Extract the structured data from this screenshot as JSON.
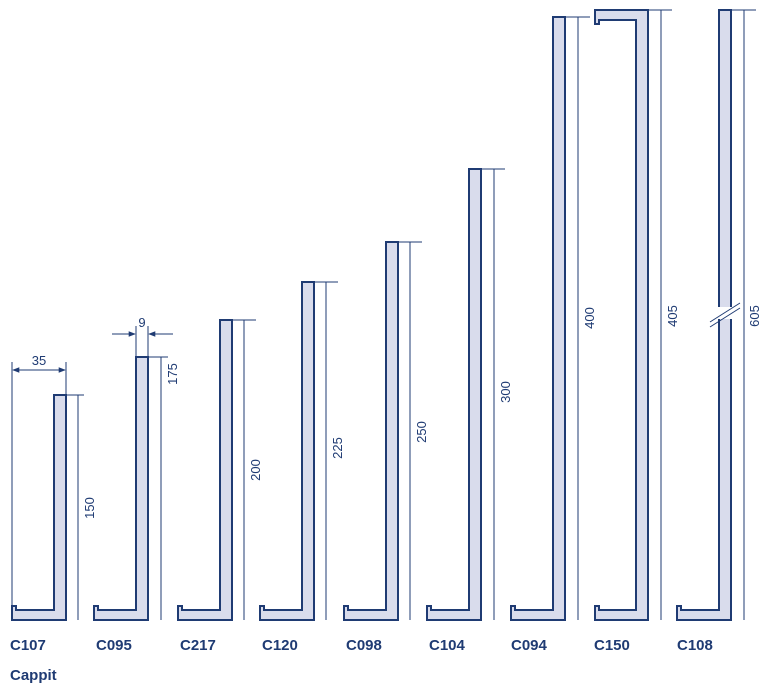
{
  "colors": {
    "stroke": "#1f3b73",
    "fill": "#d9dcec",
    "text": "#1f3b73"
  },
  "profiles": [
    {
      "code": "C107",
      "height_label": "150",
      "width_label": "35"
    },
    {
      "code": "C095",
      "height_label": "175",
      "thickness_label": "9"
    },
    {
      "code": "C217",
      "height_label": "200"
    },
    {
      "code": "C120",
      "height_label": "225"
    },
    {
      "code": "C098",
      "height_label": "250"
    },
    {
      "code": "C104",
      "height_label": "300"
    },
    {
      "code": "C094",
      "height_label": "400"
    },
    {
      "code": "C150",
      "height_label": "405",
      "has_top_flange": true
    },
    {
      "code": "C108",
      "height_label": "605",
      "has_break": true
    }
  ],
  "footer": {
    "label": "Cappit"
  }
}
